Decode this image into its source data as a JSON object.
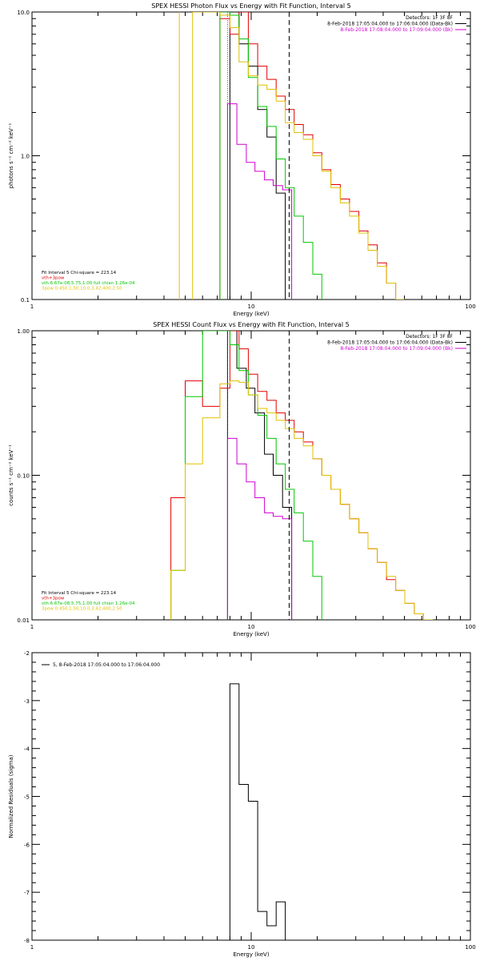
{
  "chart_data": [
    {
      "type": "line",
      "title": "SPEX HESSI Photon Flux vs Energy with Fit Function, Interval 5",
      "xlabel": "Energy (keV)",
      "ylabel": "photons s⁻¹ cm⁻² keV⁻¹",
      "xscale": "log",
      "yscale": "log",
      "xlim": [
        1,
        100
      ],
      "ylim": [
        0.1,
        10
      ],
      "x_ticks": [
        "1",
        "10",
        "100"
      ],
      "y_ticks": [
        "0.1",
        "1.0",
        "10.0"
      ],
      "header": [
        "Detectors: 1F 3F 8F",
        "8-Feb-2018 17:05:04.000 to 17:06:04.000 (Data-Bk)",
        "8-Feb-2018 17:08:04.000 to 17:09:04.000 (Bk)"
      ],
      "header_colors": [
        "#000000",
        "#000000",
        "#d000d0"
      ],
      "legend": [
        "Fit Interval 5   Chi-square = 223.14",
        "vth+3pow",
        "vth 6.67e-08,5.75,1.00  full chian 1.26e-04",
        "3pow 0.450,1.50,10.0,3.42,400,2.50"
      ],
      "legend_colors": [
        "#000000",
        "#e00000",
        "#00c800",
        "#e0c000"
      ],
      "vlines": [
        {
          "x": 7.8,
          "color": "#d000d0",
          "dash": "dotted"
        },
        {
          "x": 14.9,
          "color": "#000000",
          "dash": "dashed"
        }
      ],
      "series": [
        {
          "color": "#000000",
          "edges": [
            8,
            8.8,
            9.7,
            10.7,
            11.8,
            13,
            14.3
          ],
          "values": [
            10,
            6,
            4.2,
            2.1,
            1.35,
            0.55
          ]
        },
        {
          "color": "#e00000",
          "edges": [
            7.2,
            8,
            8.8,
            9.7,
            10.7,
            11.8,
            13,
            14.3,
            15.7,
            17.3,
            19.1,
            21,
            23.1,
            25.5,
            28.1,
            31,
            34.1,
            37.6,
            41.4,
            45.6,
            50.2
          ],
          "values": [
            9.0,
            7.0,
            10,
            6,
            4.2,
            3.4,
            2.6,
            2.1,
            1.65,
            1.4,
            1.05,
            0.8,
            0.63,
            0.5,
            0.41,
            0.3,
            0.24,
            0.18,
            0.13,
            0.1
          ]
        },
        {
          "color": "#00c800",
          "edges": [
            7.2,
            8,
            8.8,
            9.7,
            10.7,
            11.8,
            13,
            14.3,
            15.7,
            17.3,
            19.1,
            21
          ],
          "values": [
            10,
            9.5,
            6.5,
            3.5,
            2.2,
            1.6,
            0.95,
            0.6,
            0.38,
            0.25,
            0.15
          ]
        },
        {
          "color": "#d000d0",
          "edges": [
            7.8,
            8.6,
            9.5,
            10.4,
            11.5,
            12.6,
            13.9,
            15.3
          ],
          "values": [
            2.3,
            1.2,
            0.9,
            0.78,
            0.68,
            0.62,
            0.58
          ]
        },
        {
          "color": "#e0c000",
          "edges": [
            5.4,
            6.0,
            6.6,
            7.2,
            8,
            8.8,
            9.7,
            10.7,
            11.8,
            13,
            14.3,
            15.7,
            17.3,
            19.1,
            21,
            23.1,
            25.5,
            28.1,
            31,
            34.1,
            37.6,
            41.4,
            45.6,
            50.2
          ],
          "values": [
            10,
            10,
            10,
            9.5,
            7.8,
            4.5,
            3.6,
            3.1,
            2.9,
            2.4,
            1.7,
            1.45,
            1.3,
            1.0,
            0.78,
            0.6,
            0.47,
            0.38,
            0.29,
            0.22,
            0.17,
            0.13,
            0.1
          ]
        }
      ],
      "edge_line": {
        "color": "#e0c000",
        "x": 4.7
      }
    },
    {
      "type": "line",
      "title": "SPEX HESSI Count Flux vs Energy with Fit Function, Interval 5",
      "xlabel": "Energy (keV)",
      "ylabel": "counts s⁻¹ cm⁻² keV⁻¹",
      "xscale": "log",
      "yscale": "log",
      "xlim": [
        1,
        100
      ],
      "ylim": [
        0.01,
        1
      ],
      "x_ticks": [
        "1",
        "10",
        "100"
      ],
      "y_ticks": [
        "0.01",
        "0.10",
        "1.00"
      ],
      "header": [
        "Detectors: 1F 3F 8F",
        "8-Feb-2018 17:05:04.000 to 17:06:04.000 (Data-Bk)",
        "8-Feb-2018 17:08:04.000 to 17:09:04.000 (Bk)"
      ],
      "header_colors": [
        "#000000",
        "#000000",
        "#d000d0"
      ],
      "legend": [
        "Fit Interval 5   Chi-square = 223.14",
        "vth+3pow",
        "vth 6.67e-08,5.75,1.00  full chian 1.26e-04",
        "3pow 0.450,1.50,10.0,3.42,400,2.50"
      ],
      "legend_colors": [
        "#000000",
        "#e00000",
        "#00c800",
        "#e0c000"
      ],
      "vlines": [
        {
          "x": 7.8,
          "color": "#d000d0",
          "dash": "dotted"
        },
        {
          "x": 14.9,
          "color": "#000000",
          "dash": "dashed"
        }
      ],
      "series": [
        {
          "color": "#000000",
          "edges": [
            7.8,
            8.6,
            9.5,
            10.4,
            11.5,
            12.6,
            13.9,
            15.3
          ],
          "values": [
            1.0,
            0.55,
            0.4,
            0.27,
            0.14,
            0.1,
            0.06
          ]
        },
        {
          "color": "#e00000",
          "edges": [
            4.3,
            5.0,
            6.0,
            7.2,
            8.0,
            8.8,
            9.7,
            10.7,
            11.8,
            13,
            14.3,
            15.7,
            17.3,
            19.1,
            21,
            23.1,
            25.5,
            28.1,
            31,
            34.1,
            37.6,
            41.4,
            45.6,
            50.2,
            55.5,
            61,
            67.5
          ],
          "values": [
            0.07,
            0.45,
            0.3,
            0.4,
            1.0,
            0.75,
            0.5,
            0.38,
            0.33,
            0.27,
            0.24,
            0.2,
            0.17,
            0.13,
            0.1,
            0.08,
            0.063,
            0.05,
            0.04,
            0.031,
            0.025,
            0.019,
            0.016,
            0.013,
            0.011,
            0.01
          ]
        },
        {
          "color": "#00c800",
          "edges": [
            4.3,
            5.0,
            6.0,
            7.2,
            8.0,
            8.8,
            9.7,
            10.7,
            11.8,
            13,
            14.3,
            15.7,
            17.3,
            19.1,
            21
          ],
          "values": [
            0.022,
            0.35,
            1.0,
            1.0,
            0.8,
            0.53,
            0.36,
            0.26,
            0.18,
            0.12,
            0.08,
            0.055,
            0.035,
            0.02
          ]
        },
        {
          "color": "#d000d0",
          "edges": [
            7.8,
            8.6,
            9.5,
            10.4,
            11.5,
            12.6,
            13.9,
            15.3
          ],
          "values": [
            0.18,
            0.12,
            0.09,
            0.07,
            0.055,
            0.052,
            0.05
          ]
        },
        {
          "color": "#e0c000",
          "edges": [
            4.3,
            5.0,
            6.0,
            7.2,
            8.0,
            8.8,
            9.7,
            10.7,
            11.8,
            13,
            14.3,
            15.7,
            17.3,
            19.1,
            21,
            23.1,
            25.5,
            28.1,
            31,
            34.1,
            37.6,
            41.4,
            45.6,
            50.2,
            55.5,
            61,
            67.5
          ],
          "values": [
            0.022,
            0.12,
            0.25,
            0.43,
            0.45,
            0.44,
            0.36,
            0.29,
            0.27,
            0.24,
            0.21,
            0.18,
            0.16,
            0.13,
            0.1,
            0.08,
            0.063,
            0.05,
            0.04,
            0.031,
            0.025,
            0.02,
            0.016,
            0.013,
            0.011,
            0.01
          ]
        }
      ]
    },
    {
      "type": "line",
      "title": "",
      "xlabel": "Energy (keV)",
      "ylabel": "Normalized Residuals (sigma)",
      "xscale": "log",
      "yscale": "linear",
      "xlim": [
        1,
        100
      ],
      "ylim": [
        -8,
        -2
      ],
      "x_ticks": [
        "1",
        "10",
        "100"
      ],
      "y_ticks": [
        "-8",
        "-7",
        "-6",
        "-5",
        "-4",
        "-3",
        "-2"
      ],
      "legend": [
        "5,  8-Feb-2018 17:05:04.000 to 17:06:04.000"
      ],
      "legend_colors": [
        "#000000"
      ],
      "series": [
        {
          "color": "#000000",
          "edges": [
            8,
            8.8,
            9.7,
            10.7,
            11.8,
            13,
            14.3
          ],
          "values": [
            -2.65,
            -4.75,
            -5.1,
            -7.4,
            -7.7,
            -7.2
          ]
        }
      ]
    }
  ]
}
